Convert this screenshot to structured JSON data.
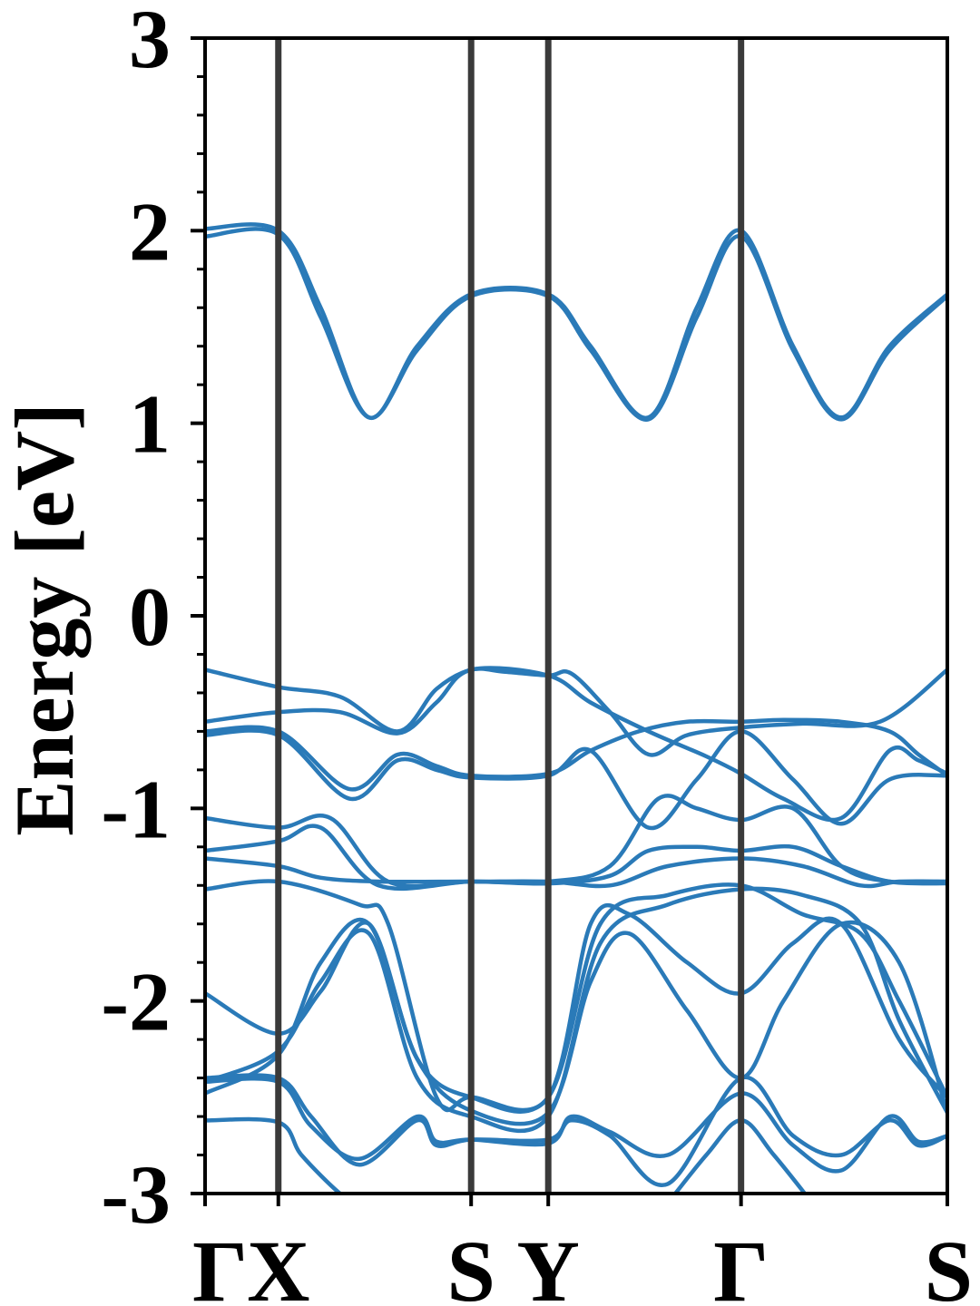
{
  "chart_data": {
    "type": "line",
    "ylabel": "Energy [eV]",
    "ylim": [
      -3,
      3
    ],
    "yticks": [
      3,
      2,
      1,
      0,
      -1,
      -2,
      -3
    ],
    "ytick_labels": [
      "3",
      "2",
      "1",
      "0",
      "-1",
      "-2",
      "-3"
    ],
    "y_minor_step": 0.2,
    "xlim": [
      0,
      3.85
    ],
    "kpoints": [
      {
        "label": "Γ",
        "x": 0.0
      },
      {
        "label": "X",
        "x": 0.38
      },
      {
        "label": "S",
        "x": 1.38
      },
      {
        "label": "Y",
        "x": 1.78
      },
      {
        "label": "Γ",
        "x": 2.78
      },
      {
        "label": "S",
        "x": 3.85
      }
    ],
    "line_color": "#2a7ab8",
    "kpoint_line_color": "#3a3a3a",
    "series": [
      {
        "x": [
          0,
          0.38,
          0.6,
          0.85,
          1.1,
          1.38,
          1.78,
          2.0,
          2.3,
          2.55,
          2.78,
          3.05,
          3.3,
          3.55,
          3.85
        ],
        "y": [
          2.01,
          2.0,
          1.6,
          1.03,
          1.4,
          1.67,
          1.67,
          1.4,
          1.03,
          1.6,
          2.0,
          1.4,
          1.03,
          1.4,
          1.67
        ]
      },
      {
        "x": [
          0,
          0.38,
          0.6,
          0.85,
          1.1,
          1.38,
          1.78,
          2.0,
          2.3,
          2.55,
          2.78,
          3.05,
          3.3,
          3.55,
          3.85
        ],
        "y": [
          1.97,
          1.98,
          1.55,
          1.03,
          1.38,
          1.66,
          1.66,
          1.38,
          1.02,
          1.55,
          1.97,
          1.38,
          1.02,
          1.38,
          1.66
        ]
      },
      {
        "x": [
          0,
          0.38,
          0.7,
          1.0,
          1.2,
          1.38,
          1.55,
          1.78,
          1.9,
          2.1,
          2.3,
          2.5,
          2.78,
          3.1,
          3.5,
          3.85
        ],
        "y": [
          -0.28,
          -0.37,
          -0.42,
          -0.6,
          -0.38,
          -0.28,
          -0.29,
          -0.31,
          -0.3,
          -0.5,
          -0.72,
          -0.62,
          -0.58,
          -0.56,
          -0.55,
          -0.28
        ]
      },
      {
        "x": [
          0,
          0.38,
          0.7,
          1.0,
          1.2,
          1.38,
          1.78,
          2.0,
          2.3,
          2.6,
          2.78,
          3.0,
          3.3,
          3.55,
          3.7,
          3.85
        ],
        "y": [
          -0.55,
          -0.5,
          -0.5,
          -0.61,
          -0.45,
          -0.28,
          -0.31,
          -0.45,
          -0.6,
          -0.73,
          -0.82,
          -0.95,
          -1.05,
          -0.7,
          -0.75,
          -0.82
        ]
      },
      {
        "x": [
          0,
          0.38,
          0.75,
          1.0,
          1.2,
          1.38,
          1.78,
          2.0,
          2.25,
          2.5,
          2.78,
          3.0,
          3.3,
          3.55,
          3.7,
          3.85
        ],
        "y": [
          -0.6,
          -0.6,
          -0.9,
          -0.72,
          -0.78,
          -0.83,
          -0.82,
          -0.7,
          -0.6,
          -0.55,
          -0.55,
          -0.54,
          -0.55,
          -0.6,
          -0.72,
          -0.83
        ]
      },
      {
        "x": [
          0,
          0.38,
          0.75,
          1.0,
          1.2,
          1.38,
          1.78,
          2.0,
          2.3,
          2.55,
          2.78,
          3.05,
          3.3,
          3.55,
          3.85
        ],
        "y": [
          -0.62,
          -0.62,
          -0.95,
          -0.75,
          -0.8,
          -0.84,
          -0.83,
          -0.7,
          -1.1,
          -0.85,
          -0.6,
          -0.85,
          -1.08,
          -0.85,
          -0.83
        ]
      },
      {
        "x": [
          0,
          0.38,
          0.65,
          0.95,
          1.38,
          1.78,
          2.1,
          2.35,
          2.55,
          2.78,
          3.05,
          3.3,
          3.55,
          3.85
        ],
        "y": [
          -1.05,
          -1.1,
          -1.05,
          -1.38,
          -1.38,
          -1.38,
          -1.3,
          -0.95,
          -1.0,
          -1.06,
          -1.0,
          -1.3,
          -1.38,
          -1.38
        ]
      },
      {
        "x": [
          0,
          0.38,
          0.6,
          0.9,
          1.38,
          1.78,
          2.1,
          2.3,
          2.55,
          2.78,
          3.05,
          3.3,
          3.55,
          3.85
        ],
        "y": [
          -1.22,
          -1.17,
          -1.1,
          -1.4,
          -1.38,
          -1.39,
          -1.35,
          -1.22,
          -1.2,
          -1.22,
          -1.2,
          -1.3,
          -1.38,
          -1.39
        ]
      },
      {
        "x": [
          0,
          0.38,
          0.6,
          0.9,
          1.38,
          1.78,
          2.1,
          2.4,
          2.78,
          3.1,
          3.4,
          3.6,
          3.85
        ],
        "y": [
          -1.26,
          -1.3,
          -1.36,
          -1.38,
          -1.38,
          -1.38,
          -1.4,
          -1.3,
          -1.26,
          -1.3,
          -1.4,
          -1.38,
          -1.38
        ]
      },
      {
        "x": [
          0,
          0.38,
          0.8,
          0.95,
          1.2,
          1.38,
          1.78,
          2.0,
          2.2,
          2.5,
          2.78,
          3.05,
          3.3,
          3.6,
          3.85
        ],
        "y": [
          -1.42,
          -1.38,
          -1.5,
          -1.6,
          -2.5,
          -2.5,
          -2.5,
          -1.6,
          -1.55,
          -1.8,
          -1.96,
          -1.7,
          -1.6,
          -2.2,
          -2.5
        ]
      },
      {
        "x": [
          0,
          0.38,
          0.6,
          0.85,
          1.1,
          1.38,
          1.78,
          2.05,
          2.4,
          2.78,
          3.1,
          3.4,
          3.6,
          3.85
        ],
        "y": [
          -1.96,
          -2.17,
          -1.95,
          -1.6,
          -2.3,
          -2.5,
          -2.5,
          -1.6,
          -1.45,
          -1.4,
          -1.55,
          -1.65,
          -2.0,
          -2.5
        ]
      },
      {
        "x": [
          0,
          0.38,
          0.6,
          0.85,
          1.1,
          1.38,
          1.78,
          2.05,
          2.4,
          2.78,
          3.1,
          3.4,
          3.6,
          3.85
        ],
        "y": [
          -2.42,
          -2.26,
          -1.9,
          -1.65,
          -2.4,
          -2.6,
          -2.6,
          -1.7,
          -1.5,
          -1.42,
          -1.45,
          -1.6,
          -2.1,
          -2.58
        ]
      },
      {
        "x": [
          0,
          0.38,
          0.6,
          0.85,
          1.1,
          1.38,
          1.78,
          2.0,
          2.2,
          2.5,
          2.78,
          3.0,
          3.3,
          3.6,
          3.85
        ],
        "y": [
          -2.48,
          -2.28,
          -1.8,
          -1.6,
          -2.3,
          -2.57,
          -2.58,
          -1.9,
          -1.65,
          -2.05,
          -2.4,
          -2.0,
          -1.6,
          -1.8,
          -2.58
        ]
      },
      {
        "x": [
          0,
          0.38,
          0.55,
          0.8,
          1.1,
          1.2,
          1.38,
          1.78,
          1.9,
          2.1,
          2.4,
          2.78,
          3.05,
          3.3,
          3.55,
          3.7,
          3.85
        ],
        "y": [
          -2.4,
          -2.4,
          -2.6,
          -2.85,
          -2.62,
          -2.75,
          -2.72,
          -2.72,
          -2.62,
          -2.7,
          -2.95,
          -2.4,
          -2.7,
          -2.8,
          -2.62,
          -2.75,
          -2.7
        ]
      },
      {
        "x": [
          0,
          0.38,
          0.55,
          0.8,
          1.1,
          1.2,
          1.38,
          1.78,
          1.9,
          2.1,
          2.4,
          2.78,
          3.05,
          3.3,
          3.55,
          3.7,
          3.85
        ],
        "y": [
          -2.42,
          -2.42,
          -2.65,
          -2.82,
          -2.6,
          -2.73,
          -2.72,
          -2.74,
          -2.6,
          -2.68,
          -2.8,
          -2.48,
          -2.75,
          -2.88,
          -2.6,
          -2.73,
          -2.7
        ]
      },
      {
        "x": [
          0,
          0.38,
          0.5,
          0.7,
          0.8
        ],
        "y": [
          -2.62,
          -2.63,
          -2.8,
          -3.0,
          -3.05
        ]
      },
      {
        "x": [
          2.4,
          2.6,
          2.78,
          2.95,
          3.15
        ],
        "y": [
          -3.05,
          -2.8,
          -2.62,
          -2.8,
          -3.05
        ]
      }
    ]
  }
}
